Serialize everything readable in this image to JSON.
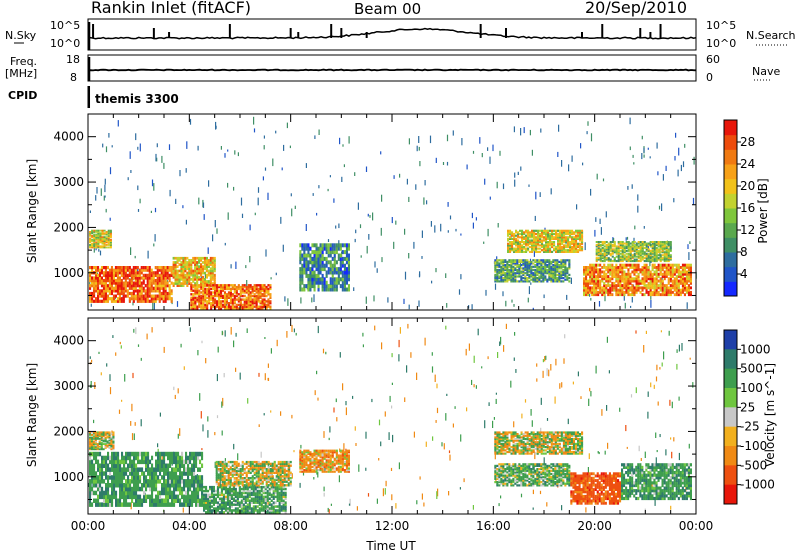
{
  "header": {
    "station": "Rankin Inlet (fitACF)",
    "beam": "Beam 00",
    "date": "20/Sep/2010"
  },
  "strips": {
    "nsky_label": "N.Sky",
    "nsearch_label": "N.Search",
    "noise_left_top": "10^5",
    "noise_left_bottom": "10^0",
    "noise_right_top": "10^5",
    "noise_right_bottom": "10^0",
    "freq_label": "Freq.",
    "freq_unit": "[MHz]",
    "freq_top": "18",
    "freq_bottom": "8",
    "nave_label": "Nave",
    "nave_top": "60",
    "nave_bottom": "0",
    "cpid_label": "CPID",
    "cpid_value": "themis 3300"
  },
  "chart_data": [
    {
      "type": "heatmap",
      "ylabel": "Slant Range [km]",
      "yticks": [
        "1000",
        "2000",
        "3000",
        "4000"
      ],
      "ylim": [
        180,
        4500
      ],
      "xlim": [
        0,
        24
      ],
      "colorbar": {
        "label": "Power [dB]",
        "ticks": [
          "4",
          "8",
          "12",
          "16",
          "20",
          "24",
          "28"
        ],
        "range": [
          0,
          32
        ]
      },
      "regions": [
        {
          "t0": 0.0,
          "t1": 3.3,
          "r0": 350,
          "r1": 1150,
          "v": 27
        },
        {
          "t0": 3.3,
          "t1": 5.0,
          "r0": 700,
          "r1": 1350,
          "v": 21
        },
        {
          "t0": 4.0,
          "t1": 7.2,
          "r0": 200,
          "r1": 750,
          "v": 26
        },
        {
          "t0": 0.0,
          "t1": 0.9,
          "r0": 1550,
          "r1": 1950,
          "v": 18
        },
        {
          "t0": 8.3,
          "t1": 10.3,
          "r0": 600,
          "r1": 1650,
          "v": 9
        },
        {
          "t0": 16.0,
          "t1": 19.0,
          "r0": 800,
          "r1": 1300,
          "v": 11
        },
        {
          "t0": 16.5,
          "t1": 19.5,
          "r0": 1450,
          "r1": 1950,
          "v": 19
        },
        {
          "t0": 19.5,
          "t1": 23.8,
          "r0": 500,
          "r1": 1200,
          "v": 24
        },
        {
          "t0": 20.0,
          "t1": 23.0,
          "r0": 1250,
          "r1": 1700,
          "v": 15
        }
      ]
    },
    {
      "type": "heatmap",
      "ylabel": "Slant Range [km]",
      "yticks": [
        "1000",
        "2000",
        "3000",
        "4000"
      ],
      "ylim": [
        180,
        4500
      ],
      "xlabel": "Time UT",
      "xticks": [
        "00:00",
        "04:00",
        "08:00",
        "12:00",
        "16:00",
        "20:00",
        "00:00"
      ],
      "xlim": [
        0,
        24
      ],
      "colorbar": {
        "label": "Velocity [m s^-1]",
        "ticks": [
          "1000",
          "500",
          "100",
          "25",
          "-25",
          "-100",
          "-500",
          "-1000"
        ],
        "range": [
          -1200,
          1200
        ]
      },
      "regions": [
        {
          "t0": 0.0,
          "t1": 4.5,
          "r0": 350,
          "r1": 1550,
          "v": 350
        },
        {
          "t0": 4.5,
          "t1": 7.8,
          "r0": 200,
          "r1": 800,
          "v": 320
        },
        {
          "t0": 5.0,
          "t1": 8.0,
          "r0": 800,
          "r1": 1350,
          "v": 0
        },
        {
          "t0": 0.0,
          "t1": 1.0,
          "r0": 1600,
          "r1": 2000,
          "v": 0
        },
        {
          "t0": 8.3,
          "t1": 10.3,
          "r0": 1100,
          "r1": 1600,
          "v": -250
        },
        {
          "t0": 16.0,
          "t1": 19.0,
          "r0": 800,
          "r1": 1300,
          "v": 250
        },
        {
          "t0": 16.0,
          "t1": 19.5,
          "r0": 1500,
          "r1": 2000,
          "v": 0
        },
        {
          "t0": 19.0,
          "t1": 21.0,
          "r0": 400,
          "r1": 1100,
          "v": -700
        },
        {
          "t0": 21.0,
          "t1": 23.8,
          "r0": 500,
          "r1": 1300,
          "v": 350
        }
      ]
    }
  ]
}
